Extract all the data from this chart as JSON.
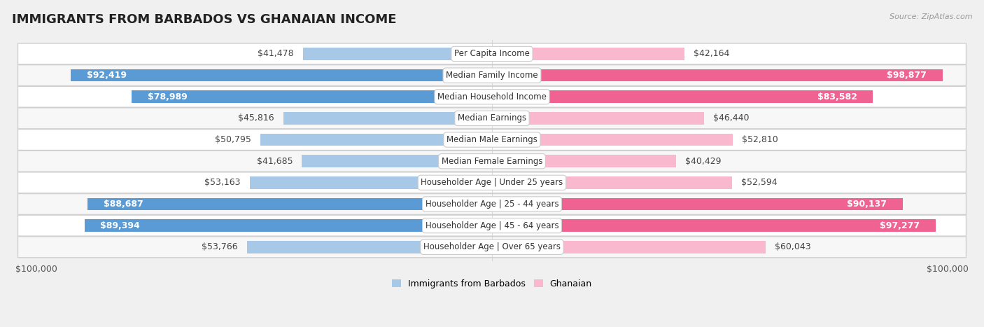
{
  "title": "IMMIGRANTS FROM BARBADOS VS GHANAIAN INCOME",
  "source": "Source: ZipAtlas.com",
  "categories": [
    "Per Capita Income",
    "Median Family Income",
    "Median Household Income",
    "Median Earnings",
    "Median Male Earnings",
    "Median Female Earnings",
    "Householder Age | Under 25 years",
    "Householder Age | 25 - 44 years",
    "Householder Age | 45 - 64 years",
    "Householder Age | Over 65 years"
  ],
  "barbados_values": [
    41478,
    92419,
    78989,
    45816,
    50795,
    41685,
    53163,
    88687,
    89394,
    53766
  ],
  "ghanaian_values": [
    42164,
    98877,
    83582,
    46440,
    52810,
    40429,
    52594,
    90137,
    97277,
    60043
  ],
  "barbados_labels": [
    "$41,478",
    "$92,419",
    "$78,989",
    "$45,816",
    "$50,795",
    "$41,685",
    "$53,163",
    "$88,687",
    "$89,394",
    "$53,766"
  ],
  "ghanaian_labels": [
    "$42,164",
    "$98,877",
    "$83,582",
    "$46,440",
    "$52,810",
    "$40,429",
    "$52,594",
    "$90,137",
    "$97,277",
    "$60,043"
  ],
  "max_value": 100000,
  "barbados_color_light": "#A8C8E8",
  "barbados_color_strong": "#5B9BD5",
  "ghanaian_color_light": "#F9B8CD",
  "ghanaian_color_strong": "#F06292",
  "background_color": "#f0f0f0",
  "row_bg_even": "#ffffff",
  "row_bg_odd": "#f7f7f7",
  "bar_height": 0.58,
  "label_fontsize": 9,
  "category_fontsize": 8.5,
  "title_fontsize": 13,
  "inside_label_threshold": 75000
}
